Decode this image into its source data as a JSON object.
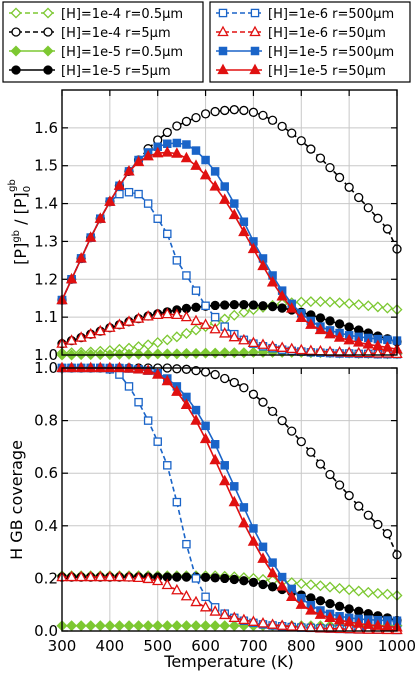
{
  "chart_data": [
    {
      "type": "line",
      "panel": "top",
      "xlabel": "",
      "ylabel_parts": [
        "[P]",
        "gb",
        " / [P]",
        "0",
        "gb"
      ],
      "xlim": [
        300,
        1000
      ],
      "ylim": [
        1.0,
        1.7
      ],
      "xticks": [
        300,
        400,
        500,
        600,
        700,
        800,
        900,
        1000
      ],
      "yticks": [
        1.0,
        1.1,
        1.2,
        1.3,
        1.4,
        1.5,
        1.6
      ],
      "ytick_labels": [
        "1.0",
        "1.1",
        "1.2",
        "1.3",
        "1.4",
        "1.5",
        "1.6"
      ],
      "grid": true,
      "x": [
        300,
        320,
        340,
        360,
        380,
        400,
        420,
        440,
        460,
        480,
        500,
        520,
        540,
        560,
        580,
        600,
        620,
        640,
        660,
        680,
        700,
        720,
        740,
        760,
        780,
        800,
        820,
        840,
        860,
        880,
        900,
        920,
        940,
        960,
        980,
        1000
      ],
      "series": [
        {
          "name": "[H]=1e-4 r=0.5µm",
          "key": "s1",
          "values": [
            1.005,
            1.006,
            1.007,
            1.008,
            1.01,
            1.012,
            1.015,
            1.018,
            1.022,
            1.027,
            1.033,
            1.04,
            1.048,
            1.057,
            1.066,
            1.075,
            1.085,
            1.095,
            1.105,
            1.113,
            1.12,
            1.126,
            1.131,
            1.135,
            1.138,
            1.14,
            1.141,
            1.141,
            1.14,
            1.138,
            1.136,
            1.133,
            1.13,
            1.127,
            1.124,
            1.12
          ]
        },
        {
          "name": "[H]=1e-4 r=5µm",
          "key": "s2",
          "values": [
            1.145,
            1.2,
            1.255,
            1.31,
            1.36,
            1.405,
            1.447,
            1.485,
            1.515,
            1.545,
            1.568,
            1.588,
            1.605,
            1.617,
            1.627,
            1.637,
            1.643,
            1.646,
            1.648,
            1.646,
            1.641,
            1.633,
            1.62,
            1.604,
            1.586,
            1.566,
            1.544,
            1.52,
            1.495,
            1.469,
            1.443,
            1.416,
            1.389,
            1.361,
            1.333,
            1.28
          ]
        },
        {
          "name": "[H]=1e-5 r=0.5µm",
          "key": "s3",
          "values": [
            1.0,
            1.0,
            1.001,
            1.001,
            1.001,
            1.001,
            1.002,
            1.002,
            1.002,
            1.002,
            1.003,
            1.003,
            1.003,
            1.004,
            1.004,
            1.005,
            1.005,
            1.006,
            1.006,
            1.006,
            1.007,
            1.007,
            1.007,
            1.007,
            1.007,
            1.007,
            1.006,
            1.006,
            1.006,
            1.005,
            1.005,
            1.004,
            1.004,
            1.004,
            1.003,
            1.003
          ]
        },
        {
          "name": "[H]=1e-5 r=5µm",
          "key": "s4",
          "values": [
            1.03,
            1.038,
            1.046,
            1.055,
            1.063,
            1.072,
            1.08,
            1.088,
            1.096,
            1.103,
            1.109,
            1.114,
            1.119,
            1.123,
            1.126,
            1.129,
            1.131,
            1.132,
            1.133,
            1.133,
            1.132,
            1.13,
            1.128,
            1.124,
            1.119,
            1.113,
            1.106,
            1.098,
            1.09,
            1.082,
            1.074,
            1.066,
            1.058,
            1.05,
            1.043,
            1.035
          ]
        },
        {
          "name": "[H]=1e-6 r=500µm",
          "key": "s5",
          "values": [
            1.145,
            1.2,
            1.255,
            1.31,
            1.36,
            1.405,
            1.425,
            1.43,
            1.425,
            1.4,
            1.36,
            1.32,
            1.25,
            1.21,
            1.17,
            1.13,
            1.1,
            1.075,
            1.055,
            1.04,
            1.03,
            1.023,
            1.018,
            1.014,
            1.011,
            1.009,
            1.007,
            1.006,
            1.005,
            1.004,
            1.004,
            1.003,
            1.003,
            1.002,
            1.002,
            1.002
          ]
        },
        {
          "name": "[H]=1e-6 r=50µm",
          "key": "s6",
          "values": [
            1.03,
            1.038,
            1.046,
            1.055,
            1.063,
            1.072,
            1.08,
            1.088,
            1.096,
            1.102,
            1.106,
            1.108,
            1.106,
            1.1,
            1.09,
            1.08,
            1.068,
            1.057,
            1.047,
            1.039,
            1.032,
            1.027,
            1.022,
            1.019,
            1.016,
            1.013,
            1.011,
            1.01,
            1.008,
            1.007,
            1.006,
            1.005,
            1.005,
            1.004,
            1.004,
            1.003
          ]
        },
        {
          "name": "[H]=1e-5 r=500µm",
          "key": "s7",
          "values": [
            1.145,
            1.2,
            1.255,
            1.31,
            1.36,
            1.405,
            1.447,
            1.485,
            1.515,
            1.535,
            1.55,
            1.558,
            1.56,
            1.556,
            1.54,
            1.515,
            1.485,
            1.445,
            1.4,
            1.352,
            1.3,
            1.255,
            1.21,
            1.17,
            1.135,
            1.11,
            1.09,
            1.075,
            1.065,
            1.058,
            1.052,
            1.048,
            1.045,
            1.042,
            1.04,
            1.038
          ]
        },
        {
          "name": "[H]=1e-5 r=50µm",
          "key": "s8",
          "values": [
            1.145,
            1.2,
            1.255,
            1.31,
            1.36,
            1.405,
            1.447,
            1.485,
            1.51,
            1.525,
            1.533,
            1.535,
            1.532,
            1.52,
            1.5,
            1.475,
            1.445,
            1.41,
            1.37,
            1.325,
            1.28,
            1.235,
            1.192,
            1.155,
            1.123,
            1.098,
            1.08,
            1.066,
            1.055,
            1.046,
            1.039,
            1.033,
            1.028,
            1.024,
            1.02,
            1.015
          ]
        }
      ]
    },
    {
      "type": "line",
      "panel": "bottom",
      "xlabel": "Temperature (K)",
      "ylabel": "H GB coverage",
      "xlim": [
        300,
        1000
      ],
      "ylim": [
        0.0,
        1.0
      ],
      "xticks": [
        300,
        400,
        500,
        600,
        700,
        800,
        900,
        1000
      ],
      "yticks": [
        0.0,
        0.2,
        0.4,
        0.6,
        0.8,
        1.0
      ],
      "ytick_labels": [
        "0.0",
        "0.2",
        "0.4",
        "0.6",
        "0.8",
        "1.0"
      ],
      "grid": true,
      "x": [
        300,
        320,
        340,
        360,
        380,
        400,
        420,
        440,
        460,
        480,
        500,
        520,
        540,
        560,
        580,
        600,
        620,
        640,
        660,
        680,
        700,
        720,
        740,
        760,
        780,
        800,
        820,
        840,
        860,
        880,
        900,
        920,
        940,
        960,
        980,
        1000
      ],
      "series": [
        {
          "name": "[H]=1e-4 r=0.5µm",
          "key": "s1",
          "values": [
            0.21,
            0.21,
            0.21,
            0.21,
            0.21,
            0.21,
            0.21,
            0.21,
            0.21,
            0.21,
            0.21,
            0.21,
            0.21,
            0.21,
            0.21,
            0.21,
            0.21,
            0.208,
            0.206,
            0.203,
            0.2,
            0.196,
            0.192,
            0.188,
            0.184,
            0.18,
            0.176,
            0.172,
            0.167,
            0.162,
            0.157,
            0.152,
            0.147,
            0.143,
            0.14,
            0.135
          ]
        },
        {
          "name": "[H]=1e-4 r=5µm",
          "key": "s2",
          "values": [
            1.0,
            1.0,
            1.0,
            1.0,
            1.0,
            1.0,
            1.0,
            1.0,
            1.0,
            1.0,
            1.0,
            1.0,
            0.997,
            0.995,
            0.99,
            0.985,
            0.975,
            0.96,
            0.945,
            0.925,
            0.9,
            0.87,
            0.835,
            0.8,
            0.76,
            0.72,
            0.68,
            0.635,
            0.595,
            0.555,
            0.515,
            0.475,
            0.44,
            0.405,
            0.37,
            0.29
          ]
        },
        {
          "name": "[H]=1e-5 r=0.5µm",
          "key": "s3",
          "values": [
            0.02,
            0.02,
            0.02,
            0.02,
            0.02,
            0.02,
            0.02,
            0.02,
            0.02,
            0.02,
            0.02,
            0.02,
            0.02,
            0.02,
            0.02,
            0.02,
            0.02,
            0.02,
            0.02,
            0.02,
            0.02,
            0.02,
            0.02,
            0.02,
            0.02,
            0.02,
            0.02,
            0.02,
            0.02,
            0.02,
            0.02,
            0.02,
            0.02,
            0.02,
            0.02,
            0.02
          ]
        },
        {
          "name": "[H]=1e-5 r=5µm",
          "key": "s4",
          "values": [
            0.205,
            0.205,
            0.205,
            0.205,
            0.205,
            0.205,
            0.205,
            0.205,
            0.205,
            0.205,
            0.205,
            0.205,
            0.205,
            0.205,
            0.205,
            0.204,
            0.202,
            0.2,
            0.196,
            0.191,
            0.185,
            0.177,
            0.168,
            0.158,
            0.148,
            0.137,
            0.126,
            0.115,
            0.104,
            0.094,
            0.084,
            0.075,
            0.066,
            0.058,
            0.05,
            0.04
          ]
        },
        {
          "name": "[H]=1e-6 r=500µm",
          "key": "s5",
          "values": [
            1.0,
            1.0,
            1.0,
            1.0,
            1.0,
            0.995,
            0.975,
            0.93,
            0.87,
            0.8,
            0.72,
            0.63,
            0.49,
            0.33,
            0.2,
            0.13,
            0.09,
            0.066,
            0.05,
            0.039,
            0.031,
            0.025,
            0.021,
            0.018,
            0.015,
            0.013,
            0.012,
            0.01,
            0.009,
            0.008,
            0.007,
            0.006,
            0.006,
            0.005,
            0.005,
            0.004
          ]
        },
        {
          "name": "[H]=1e-6 r=50µm",
          "key": "s6",
          "values": [
            0.205,
            0.205,
            0.205,
            0.205,
            0.205,
            0.205,
            0.205,
            0.204,
            0.202,
            0.198,
            0.19,
            0.175,
            0.155,
            0.132,
            0.11,
            0.09,
            0.074,
            0.061,
            0.05,
            0.042,
            0.035,
            0.029,
            0.024,
            0.02,
            0.017,
            0.014,
            0.012,
            0.01,
            0.009,
            0.008,
            0.007,
            0.006,
            0.005,
            0.005,
            0.004,
            0.004
          ]
        },
        {
          "name": "[H]=1e-5 r=500µm",
          "key": "s7",
          "values": [
            1.0,
            1.0,
            1.0,
            1.0,
            1.0,
            1.0,
            1.0,
            0.998,
            0.995,
            0.99,
            0.98,
            0.96,
            0.93,
            0.89,
            0.84,
            0.78,
            0.71,
            0.63,
            0.55,
            0.47,
            0.39,
            0.32,
            0.26,
            0.205,
            0.16,
            0.125,
            0.098,
            0.078,
            0.065,
            0.056,
            0.05,
            0.046,
            0.043,
            0.041,
            0.04,
            0.039
          ]
        },
        {
          "name": "[H]=1e-5 r=50µm",
          "key": "s8",
          "values": [
            1.0,
            1.0,
            1.0,
            1.0,
            1.0,
            1.0,
            1.0,
            0.998,
            0.995,
            0.99,
            0.975,
            0.95,
            0.91,
            0.86,
            0.8,
            0.73,
            0.65,
            0.57,
            0.49,
            0.41,
            0.34,
            0.275,
            0.22,
            0.17,
            0.13,
            0.1,
            0.078,
            0.062,
            0.05,
            0.041,
            0.034,
            0.028,
            0.024,
            0.02,
            0.017,
            0.014
          ]
        }
      ]
    }
  ],
  "legend": {
    "left": [
      "[H]=1e-4 r=0.5µm",
      "[H]=1e-4 r=5µm",
      "[H]=1e-5 r=0.5µm",
      "[H]=1e-5 r=5µm"
    ],
    "right": [
      "[H]=1e-6 r=500µm",
      "[H]=1e-6 r=50µm",
      "[H]=1e-5 r=500µm",
      "[H]=1e-5 r=50µm"
    ]
  },
  "series_styles": {
    "s1": {
      "color": "#7dc832",
      "marker": "diamond-open",
      "dash": "dashed"
    },
    "s2": {
      "color": "#000000",
      "marker": "circle-open",
      "dash": "dashed"
    },
    "s3": {
      "color": "#7dc832",
      "marker": "diamond-filled",
      "dash": "solid"
    },
    "s4": {
      "color": "#000000",
      "marker": "circle-filled",
      "dash": "solid"
    },
    "s5": {
      "color": "#1a64c8",
      "marker": "square-open",
      "dash": "dashed"
    },
    "s6": {
      "color": "#e01010",
      "marker": "triangle-open",
      "dash": "dashed"
    },
    "s7": {
      "color": "#1a64c8",
      "marker": "square-filled",
      "dash": "solid"
    },
    "s8": {
      "color": "#e01010",
      "marker": "triangle-filled",
      "dash": "solid"
    }
  }
}
